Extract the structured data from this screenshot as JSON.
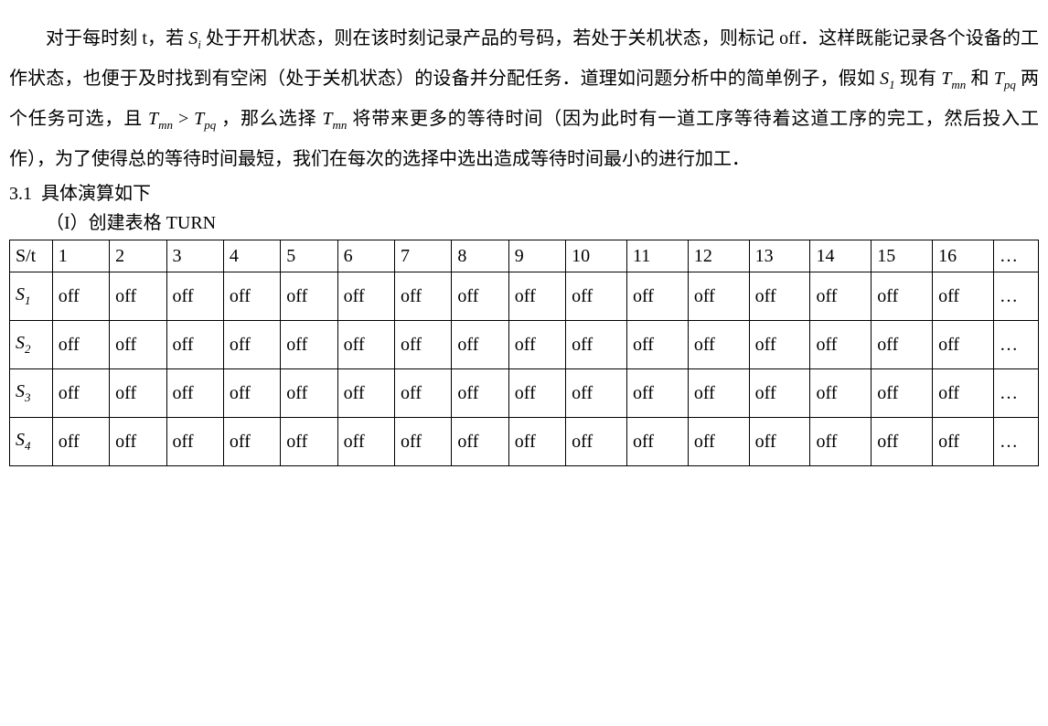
{
  "para1_a": "对于每时刻 t，若 ",
  "para1_b": " 处于开机状态，则在该时刻记录产品的号码，若处于关机状态，则标记 off．这样既能记录各个设备的工作状态，也便于及时找到有空闲（处于关机状态）的设备并分配任务．道理如问题分析中的简单例子，假如 ",
  "para1_c": " 现有 ",
  "para1_d": " 和 ",
  "para1_e": " 两个任务可选，且 ",
  "para1_f": " > ",
  "para1_g": " ，那么选择 ",
  "para1_h": " 将带来更多的等待时间（因为此时有一道工序等待着这道工序的完工，然后投入工作），为了使得总的等待时间最短，我们在每次的选择中选出造成等待时间最小的进行加工．",
  "sec_num": "3.1",
  "sec_title": "具体演算如下",
  "step_label": "（I）创建表格 TURN",
  "sym": {
    "Si_base": "S",
    "Si_sub": "i",
    "S1_base": "S",
    "S1_sub": "1",
    "Tmn_base": "T",
    "Tmn_sub": "mn",
    "Tpq_base": "T",
    "Tpq_sub": "pq"
  },
  "table": {
    "header": [
      "S/t",
      "1",
      "2",
      "3",
      "4",
      "5",
      "6",
      "7",
      "8",
      "9",
      "10",
      "11",
      "12",
      "13",
      "14",
      "15",
      "16",
      "…"
    ],
    "rows": [
      {
        "label_base": "S",
        "label_sub": "1",
        "cells": [
          "off",
          "off",
          "off",
          "off",
          "off",
          "off",
          "off",
          "off",
          "off",
          "off",
          "off",
          "off",
          "off",
          "off",
          "off",
          "off",
          "…"
        ]
      },
      {
        "label_base": "S",
        "label_sub": "2",
        "cells": [
          "off",
          "off",
          "off",
          "off",
          "off",
          "off",
          "off",
          "off",
          "off",
          "off",
          "off",
          "off",
          "off",
          "off",
          "off",
          "off",
          "…"
        ]
      },
      {
        "label_base": "S",
        "label_sub": "3",
        "cells": [
          "off",
          "off",
          "off",
          "off",
          "off",
          "off",
          "off",
          "off",
          "off",
          "off",
          "off",
          "off",
          "off",
          "off",
          "off",
          "off",
          "…"
        ]
      },
      {
        "label_base": "S",
        "label_sub": "4",
        "cells": [
          "off",
          "off",
          "off",
          "off",
          "off",
          "off",
          "off",
          "off",
          "off",
          "off",
          "off",
          "off",
          "off",
          "off",
          "off",
          "off",
          "…"
        ]
      }
    ]
  }
}
